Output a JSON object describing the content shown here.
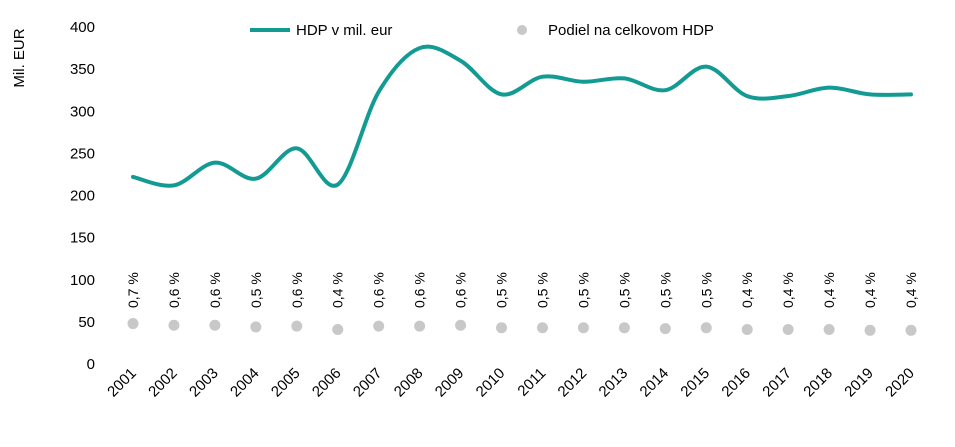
{
  "chart_data": {
    "type": "line",
    "title": "",
    "xlabel": "",
    "ylabel": "Mil. EUR",
    "ylim": [
      0,
      400
    ],
    "yticks": [
      0,
      50,
      100,
      150,
      200,
      250,
      300,
      350,
      400
    ],
    "ytick_labels": [
      "0",
      "50",
      "100",
      "150",
      "200",
      "250",
      "300",
      "350",
      "400"
    ],
    "grid": false,
    "legend_position": "top-center",
    "categories": [
      "2001",
      "2002",
      "2003",
      "2004",
      "2005",
      "2006",
      "2007",
      "2008",
      "2009",
      "2010",
      "2011",
      "2012",
      "2013",
      "2014",
      "2015",
      "2016",
      "2017",
      "2018",
      "2019",
      "2020"
    ],
    "series": [
      {
        "name": "HDP v mil. eur",
        "kind": "line",
        "color": "#139B93",
        "values": [
          222,
          212,
          239,
          220,
          256,
          213,
          323,
          375,
          360,
          320,
          341,
          335,
          339,
          325,
          353,
          318,
          318,
          328,
          320,
          320
        ]
      },
      {
        "name": "Podiel na celkovom HDP",
        "kind": "scatter",
        "color": "#C8C8C8",
        "values": [
          48,
          46,
          46,
          44,
          45,
          41,
          45,
          45,
          46,
          43,
          43,
          43,
          43,
          42,
          43,
          41,
          41,
          41,
          40,
          40
        ],
        "labels": [
          "0,7 %",
          "0,6 %",
          "0,6 %",
          "0,5 %",
          "0,6 %",
          "0,4 %",
          "0,6 %",
          "0,6 %",
          "0,6 %",
          "0,5 %",
          "0,5 %",
          "0,5 %",
          "0,5 %",
          "0,5 %",
          "0,5 %",
          "0,4 %",
          "0,4 %",
          "0,4 %",
          "0,4 %",
          "0,4 %"
        ]
      }
    ]
  }
}
